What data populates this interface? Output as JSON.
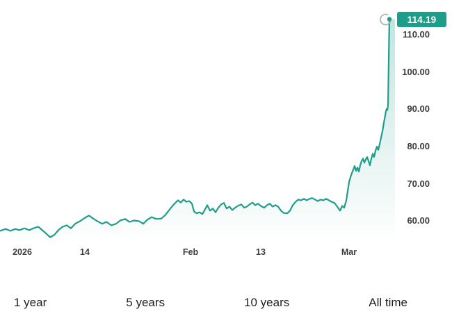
{
  "chart_data": {
    "type": "line",
    "title": "",
    "legend": "none",
    "grid": "off",
    "y_axis_side": "right",
    "line_color": "#1f9d8b",
    "area_top_color": "rgba(31,157,139,0.28)",
    "area_bottom_color": "rgba(31,157,139,0)",
    "badge_color": "#1d9e88",
    "ring_color": "#a9b5b3",
    "tick_label_color": "#3d3d3d",
    "ylim": [
      54.5,
      115.6
    ],
    "y_ticks": [
      110,
      100,
      90,
      80,
      70,
      60
    ],
    "y_tick_decimals": 2,
    "x_ticks": [
      {
        "label": "2026",
        "x": 32
      },
      {
        "label": "14",
        "x": 122
      },
      {
        "label": "Feb",
        "x": 274
      },
      {
        "label": "13",
        "x": 375
      },
      {
        "label": "Mar",
        "x": 502
      }
    ],
    "last_price": 114.19,
    "last_price_label": "114.19",
    "points": [
      [
        0,
        57.4
      ],
      [
        8,
        57.9
      ],
      [
        15,
        57.4
      ],
      [
        22,
        57.9
      ],
      [
        28,
        57.6
      ],
      [
        35,
        58.1
      ],
      [
        42,
        57.6
      ],
      [
        48,
        58.1
      ],
      [
        55,
        58.5
      ],
      [
        62,
        57.4
      ],
      [
        68,
        56.4
      ],
      [
        72,
        55.7
      ],
      [
        78,
        56.3
      ],
      [
        84,
        57.6
      ],
      [
        90,
        58.5
      ],
      [
        96,
        58.9
      ],
      [
        102,
        58.1
      ],
      [
        108,
        59.3
      ],
      [
        115,
        60.0
      ],
      [
        122,
        60.9
      ],
      [
        128,
        61.5
      ],
      [
        134,
        60.7
      ],
      [
        140,
        60.0
      ],
      [
        147,
        59.3
      ],
      [
        153,
        59.8
      ],
      [
        160,
        58.9
      ],
      [
        167,
        59.3
      ],
      [
        173,
        60.2
      ],
      [
        180,
        60.6
      ],
      [
        186,
        59.8
      ],
      [
        193,
        60.2
      ],
      [
        200,
        60.0
      ],
      [
        206,
        59.3
      ],
      [
        212,
        60.4
      ],
      [
        218,
        61.1
      ],
      [
        225,
        60.6
      ],
      [
        232,
        60.7
      ],
      [
        238,
        61.7
      ],
      [
        245,
        63.4
      ],
      [
        251,
        64.7
      ],
      [
        256,
        65.6
      ],
      [
        260,
        65.0
      ],
      [
        264,
        65.8
      ],
      [
        268,
        65.2
      ],
      [
        272,
        65.4
      ],
      [
        276,
        64.7
      ],
      [
        279,
        62.6
      ],
      [
        283,
        62.1
      ],
      [
        287,
        62.4
      ],
      [
        291,
        61.9
      ],
      [
        295,
        63.2
      ],
      [
        298,
        64.3
      ],
      [
        302,
        62.8
      ],
      [
        306,
        63.4
      ],
      [
        310,
        62.4
      ],
      [
        314,
        63.6
      ],
      [
        318,
        64.5
      ],
      [
        322,
        64.9
      ],
      [
        326,
        63.4
      ],
      [
        330,
        63.9
      ],
      [
        334,
        63.0
      ],
      [
        338,
        63.6
      ],
      [
        342,
        64.1
      ],
      [
        347,
        64.5
      ],
      [
        351,
        63.6
      ],
      [
        355,
        63.9
      ],
      [
        359,
        64.5
      ],
      [
        363,
        65.0
      ],
      [
        367,
        64.3
      ],
      [
        371,
        64.7
      ],
      [
        375,
        64.1
      ],
      [
        380,
        63.6
      ],
      [
        384,
        64.3
      ],
      [
        388,
        64.7
      ],
      [
        392,
        63.9
      ],
      [
        396,
        64.3
      ],
      [
        400,
        63.9
      ],
      [
        404,
        62.8
      ],
      [
        408,
        62.2
      ],
      [
        413,
        62.1
      ],
      [
        417,
        62.8
      ],
      [
        421,
        64.3
      ],
      [
        425,
        65.2
      ],
      [
        429,
        65.8
      ],
      [
        433,
        65.6
      ],
      [
        437,
        66.0
      ],
      [
        441,
        65.6
      ],
      [
        445,
        66.0
      ],
      [
        449,
        66.2
      ],
      [
        453,
        65.8
      ],
      [
        457,
        65.4
      ],
      [
        461,
        65.8
      ],
      [
        465,
        65.6
      ],
      [
        469,
        66.0
      ],
      [
        473,
        65.6
      ],
      [
        477,
        65.2
      ],
      [
        481,
        64.9
      ],
      [
        485,
        63.9
      ],
      [
        489,
        62.8
      ],
      [
        492,
        64.1
      ],
      [
        495,
        63.6
      ],
      [
        498,
        65.6
      ],
      [
        500,
        68.0
      ],
      [
        502,
        70.5
      ],
      [
        504,
        71.8
      ],
      [
        506,
        72.9
      ],
      [
        508,
        73.8
      ],
      [
        510,
        74.8
      ],
      [
        512,
        73.5
      ],
      [
        514,
        74.4
      ],
      [
        516,
        73.3
      ],
      [
        518,
        75.0
      ],
      [
        520,
        76.1
      ],
      [
        522,
        76.8
      ],
      [
        524,
        75.7
      ],
      [
        526,
        76.6
      ],
      [
        528,
        77.2
      ],
      [
        530,
        76.1
      ],
      [
        532,
        75.0
      ],
      [
        534,
        76.8
      ],
      [
        536,
        78.1
      ],
      [
        538,
        77.2
      ],
      [
        540,
        78.9
      ],
      [
        542,
        80.0
      ],
      [
        544,
        79.1
      ],
      [
        546,
        80.7
      ],
      [
        548,
        82.4
      ],
      [
        550,
        84.1
      ],
      [
        552,
        86.4
      ],
      [
        554,
        88.4
      ],
      [
        555,
        89.5
      ],
      [
        556,
        90.1
      ],
      [
        557,
        89.8
      ],
      [
        558,
        91.0
      ],
      [
        558.5,
        97.0
      ],
      [
        559,
        103.0
      ],
      [
        559.5,
        109.0
      ],
      [
        560,
        114.19
      ]
    ]
  },
  "ranges": {
    "items": [
      {
        "label": "1 year"
      },
      {
        "label": "5 years"
      },
      {
        "label": "10 years"
      },
      {
        "label": "All time"
      }
    ]
  }
}
